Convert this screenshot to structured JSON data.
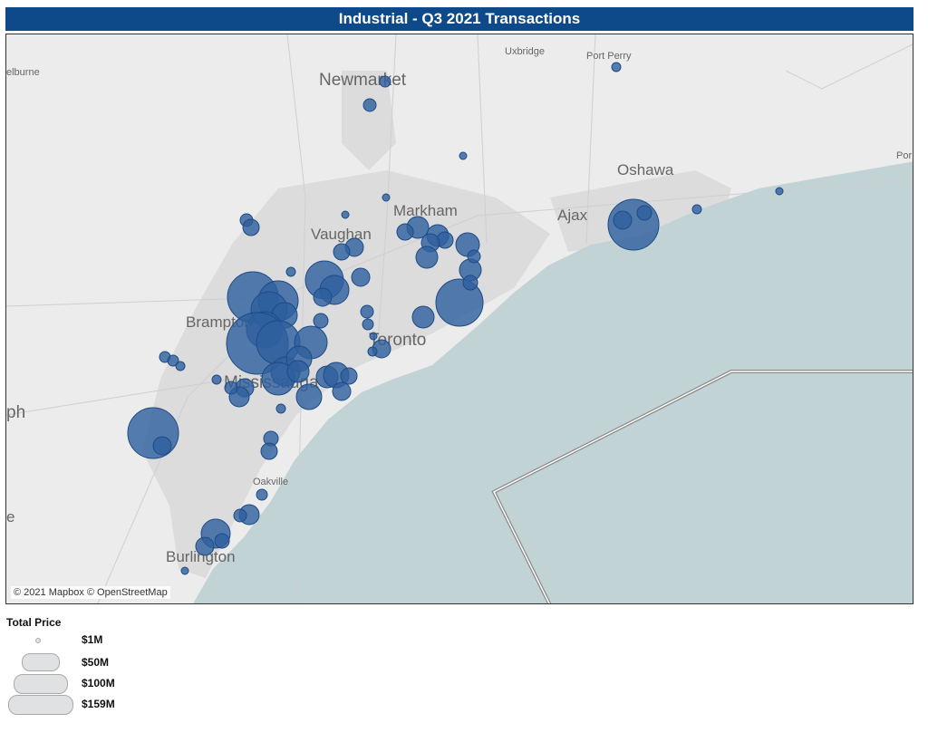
{
  "title": "Industrial - Q3 2021 Transactions",
  "map": {
    "attribution": "© 2021 Mapbox © OpenStreetMap",
    "colors": {
      "land": "#ececec",
      "urban": "#dcdcdc",
      "water": "#c1d3d5",
      "bubble": "#2e5f9e",
      "bubble_stroke": "#1d4b86",
      "border": "#8a8a8a"
    },
    "place_labels": [
      {
        "name": "Newmarket"
      },
      {
        "name": "Uxbridge"
      },
      {
        "name": "Port Perry"
      },
      {
        "name": "Oshawa"
      },
      {
        "name": "Ajax"
      },
      {
        "name": "Markham"
      },
      {
        "name": "Vaughan"
      },
      {
        "name": "Brampton"
      },
      {
        "name": "Toronto"
      },
      {
        "name": "Mississauga"
      },
      {
        "name": "Oakville"
      },
      {
        "name": "Burlington"
      },
      {
        "name": "elburne"
      },
      {
        "name": "ph"
      },
      {
        "name": "e"
      },
      {
        "name": "Por"
      }
    ]
  },
  "legend": {
    "title": "Total Price",
    "items": [
      {
        "label": "$1M",
        "value_musd": 1
      },
      {
        "label": "$50M",
        "value_musd": 50
      },
      {
        "label": "$100M",
        "value_musd": 100
      },
      {
        "label": "$159M",
        "value_musd": 159
      }
    ]
  }
}
